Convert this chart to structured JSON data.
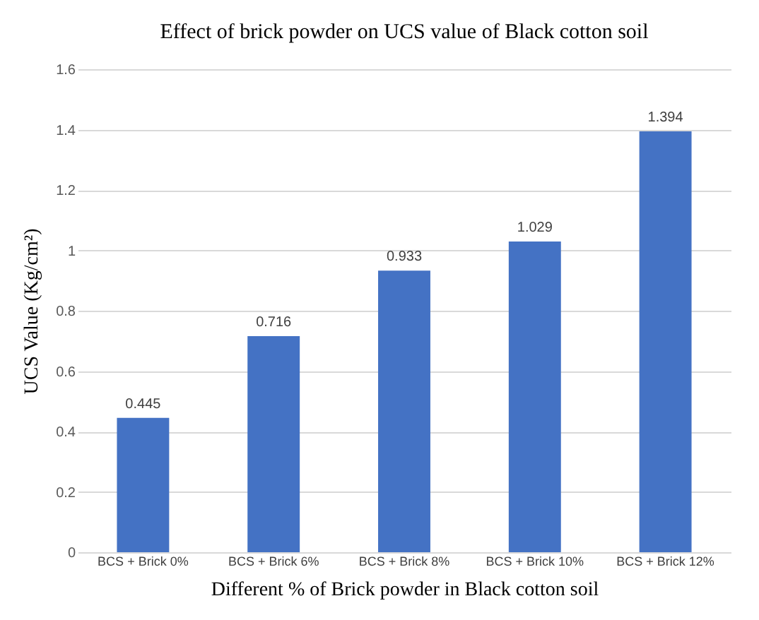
{
  "chart_data": {
    "type": "bar",
    "title": "Effect of brick powder on UCS value of Black cotton soil",
    "xlabel": "Different % of Brick powder in Black cotton soil",
    "ylabel": "UCS Value (Kg/cm²)",
    "categories": [
      "BCS + Brick 0%",
      "BCS + Brick 6%",
      "BCS + Brick 8%",
      "BCS + Brick 10%",
      "BCS + Brick 12%"
    ],
    "values": [
      0.445,
      0.716,
      0.933,
      1.029,
      1.394
    ],
    "color": "#4472c4",
    "ylim": [
      0,
      1.6
    ],
    "yticks": [
      0,
      0.2,
      0.4,
      0.6,
      0.8,
      1,
      1.2,
      1.4,
      1.6
    ],
    "grid": "y",
    "data_labels": true
  }
}
